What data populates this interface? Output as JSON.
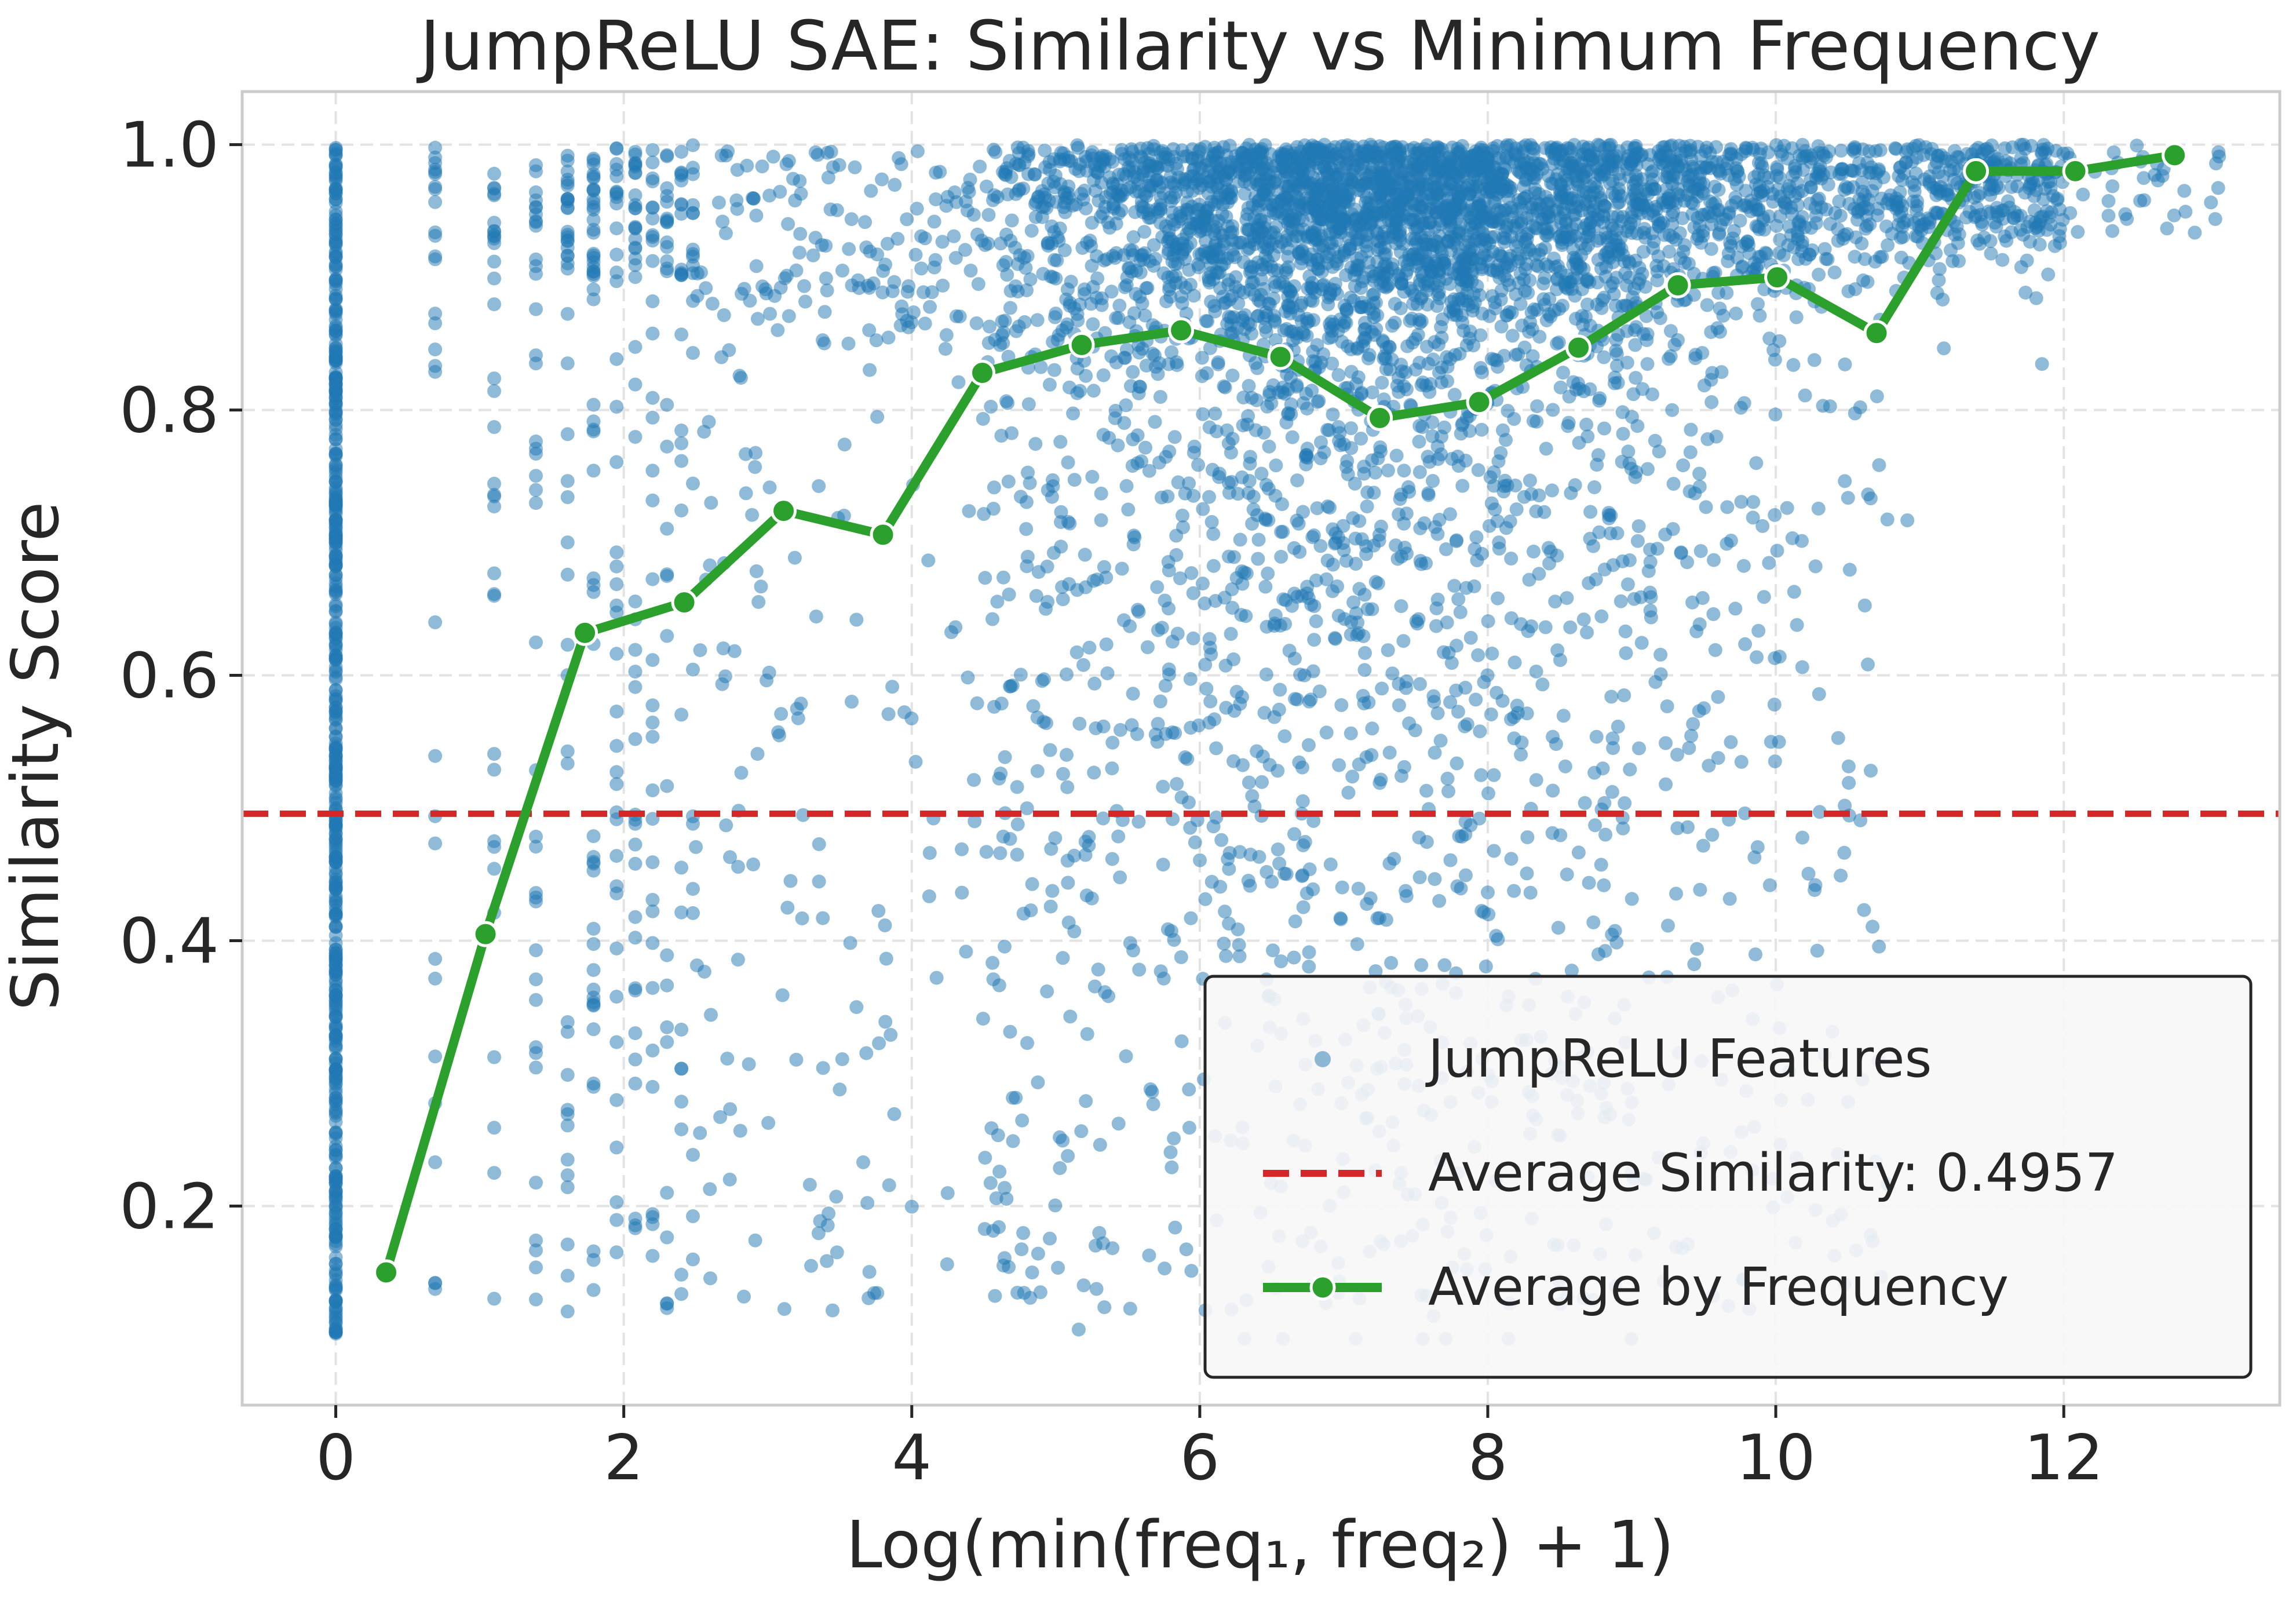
{
  "chart_data": {
    "type": "scatter",
    "title": "JumpReLU SAE: Similarity vs Minimum Frequency",
    "xlabel": "Log(min(freq₁, freq₂) + 1)",
    "ylabel": "Similarity Score",
    "xlim": [
      -0.65,
      13.5
    ],
    "ylim": [
      0.05,
      1.04
    ],
    "xticks": [
      0,
      2,
      4,
      6,
      8,
      10,
      12
    ],
    "xtick_labels": [
      "0",
      "2",
      "4",
      "6",
      "8",
      "10",
      "12"
    ],
    "yticks": [
      0.2,
      0.4,
      0.6,
      0.8,
      1.0
    ],
    "ytick_labels": [
      "0.2",
      "0.4",
      "0.6",
      "0.8",
      "1.0"
    ],
    "grid": true,
    "legend_position": "bottom-right",
    "average_similarity": 0.4957,
    "series": [
      {
        "name": "JumpReLU Features",
        "kind": "scatter",
        "color": "#1f77b4",
        "note": "dense scatter of ~8000 features; zero-frequency column at x=0 spans 0.10-1.00, mass concentrated near x 6-9 and y 0.8-1.0"
      },
      {
        "name": "Average Similarity: 0.4957",
        "kind": "hline",
        "y": 0.4957,
        "color": "#d62728"
      },
      {
        "name": "Average by Frequency",
        "kind": "line",
        "color": "#2ca02c",
        "x": [
          0.35,
          1.04,
          1.73,
          2.42,
          3.11,
          3.8,
          4.49,
          5.18,
          5.87,
          6.56,
          7.25,
          7.94,
          8.63,
          9.32,
          10.01,
          10.7,
          11.39,
          12.08,
          12.77
        ],
        "y": [
          0.15,
          0.405,
          0.632,
          0.655,
          0.724,
          0.706,
          0.828,
          0.849,
          0.86,
          0.84,
          0.794,
          0.806,
          0.847,
          0.894,
          0.9,
          0.858,
          0.98,
          0.98,
          0.992
        ]
      }
    ]
  },
  "legend": {
    "scatter_label": "JumpReLU Features",
    "avg_label": "Average Similarity: 0.4957",
    "line_label": "Average by Frequency"
  },
  "colors": {
    "scatter": "#1f77b4",
    "avg_line": "#d62728",
    "freq_line": "#2ca02c",
    "grid": "#e3e3e3",
    "spine": "#cccccc",
    "text": "#262626"
  }
}
